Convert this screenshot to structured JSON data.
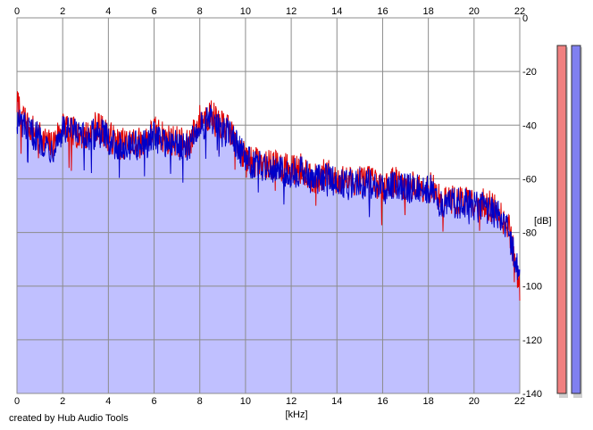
{
  "chart_data": {
    "type": "area",
    "title": "",
    "xlabel": "[kHz]",
    "ylabel": "[dB]",
    "xlim": [
      0,
      22
    ],
    "ylim": [
      -140,
      0
    ],
    "x_ticks": [
      0,
      2,
      4,
      6,
      8,
      10,
      12,
      14,
      16,
      18,
      20,
      22
    ],
    "y_ticks": [
      0,
      -20,
      -40,
      -60,
      -80,
      -100,
      -120,
      -140
    ],
    "grid": true,
    "series": [
      {
        "color": "#e00000",
        "x": [
          0,
          0.5,
          1,
          1.5,
          2,
          2.5,
          3,
          3.5,
          4,
          4.5,
          5,
          5.5,
          6,
          6.5,
          7,
          7.5,
          8,
          8.5,
          9,
          9.5,
          10,
          10.5,
          11,
          11.5,
          12,
          12.5,
          13,
          13.5,
          14,
          14.5,
          15,
          15.5,
          16,
          16.5,
          17,
          17.5,
          18,
          18.5,
          19,
          19.5,
          20,
          20.5,
          21,
          21.5,
          22
        ],
        "values": [
          -32,
          -40,
          -44,
          -48,
          -40,
          -42,
          -44,
          -40,
          -44,
          -47,
          -46,
          -47,
          -42,
          -45,
          -46,
          -47,
          -38,
          -36,
          -40,
          -44,
          -52,
          -54,
          -54,
          -55,
          -57,
          -56,
          -60,
          -58,
          -60,
          -61,
          -60,
          -61,
          -62,
          -61,
          -62,
          -63,
          -62,
          -67,
          -68,
          -68,
          -68,
          -69,
          -72,
          -77,
          -100
        ]
      },
      {
        "color": "#0000c8",
        "x": [
          0,
          0.5,
          1,
          1.5,
          2,
          2.5,
          3,
          3.5,
          4,
          4.5,
          5,
          5.5,
          6,
          6.5,
          7,
          7.5,
          8,
          8.5,
          9,
          9.5,
          10,
          10.5,
          11,
          11.5,
          12,
          12.5,
          13,
          13.5,
          14,
          14.5,
          15,
          15.5,
          16,
          16.5,
          17,
          17.5,
          18,
          18.5,
          19,
          19.5,
          20,
          20.5,
          21,
          21.5,
          22
        ],
        "values": [
          -38,
          -42,
          -45,
          -49,
          -42,
          -43,
          -45,
          -42,
          -45,
          -48,
          -47,
          -48,
          -44,
          -46,
          -47,
          -48,
          -40,
          -38,
          -41,
          -45,
          -53,
          -55,
          -55,
          -56,
          -58,
          -57,
          -61,
          -59,
          -61,
          -62,
          -61,
          -62,
          -63,
          -62,
          -63,
          -64,
          -63,
          -68,
          -69,
          -69,
          -70,
          -71,
          -73,
          -78,
          -98
        ]
      }
    ],
    "fill_color": "#c0c0ff"
  },
  "level_meters": [
    {
      "channel": "left",
      "color": "#f08080"
    },
    {
      "channel": "right",
      "color": "#8080f0"
    }
  ],
  "credit": "created by Hub Audio Tools"
}
